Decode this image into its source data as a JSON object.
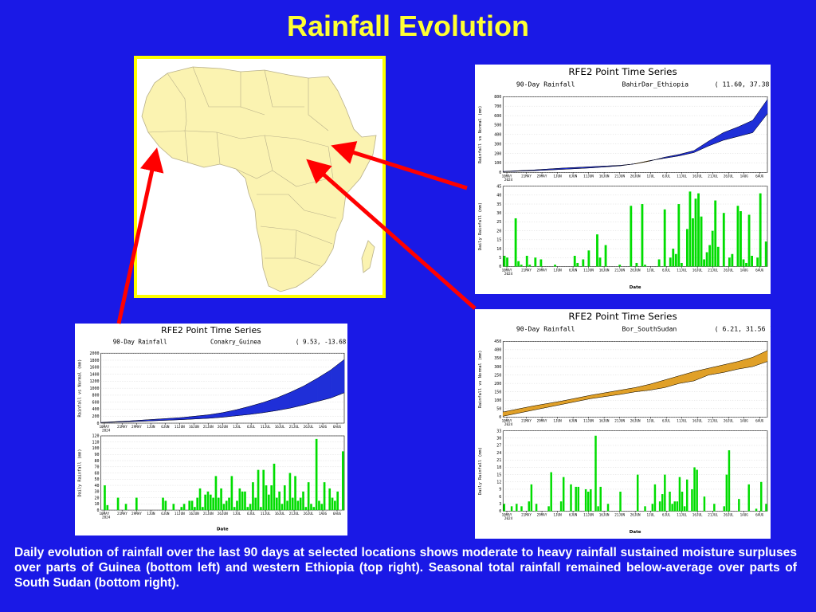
{
  "title": "Rainfall Evolution",
  "caption": "Daily evolution of rainfall over the last 90 days at selected locations shows moderate to heavy rainfall sustained moisture surpluses over parts of Guinea (bottom left) and western Ethiopia (top right). Seasonal total rainfall remained below-average over parts of South Sudan (bottom right).",
  "colors": {
    "background": "#1a19e6",
    "title": "#ffff33",
    "map_border": "#ffff00",
    "map_land": "#fbf3b1",
    "arrow": "#ff0000",
    "surplus": "#1f2fd8",
    "deficit": "#e0a028",
    "daily_bar": "#00dd00"
  },
  "map": {
    "region": "Africa",
    "icon": "africa-map-icon"
  },
  "chart_data": [
    {
      "id": "ethiopia",
      "type": "area",
      "panel_title": "RFE2 Point Time Series",
      "subtitle_left": "90-Day Rainfall",
      "location": "BahirDar_Ethiopia",
      "coords": "( 11.60, 37.38 )",
      "x_ticks": [
        "10MAY",
        "21MAY",
        "29MAY",
        "1JUN",
        "6JUN",
        "11JUN",
        "16JUN",
        "21JUN",
        "26JUN",
        "1JUL",
        "6JUL",
        "11JUL",
        "16JUL",
        "21JUL",
        "26JUL",
        "1AUG",
        "6AUG"
      ],
      "year_label": "2024",
      "xlabel": "Date",
      "top": {
        "ylabel": "Rainfall vs Normal (mm)",
        "ylim": [
          0,
          800
        ],
        "yticks": [
          0,
          100,
          200,
          300,
          400,
          500,
          600,
          700,
          800
        ],
        "days": [
          0,
          10,
          20,
          30,
          40,
          45,
          50,
          55,
          60,
          65,
          70,
          75,
          80,
          85,
          90
        ],
        "actual": [
          10,
          25,
          45,
          60,
          75,
          90,
          120,
          160,
          190,
          230,
          330,
          420,
          480,
          550,
          770
        ],
        "normal": [
          8,
          18,
          32,
          48,
          70,
          92,
          125,
          150,
          175,
          210,
          280,
          340,
          380,
          420,
          620
        ]
      },
      "bottom": {
        "ylabel": "Daily Rainfall (mm)",
        "ylim": [
          0,
          45
        ],
        "yticks": [
          0,
          5,
          10,
          15,
          20,
          25,
          30,
          35,
          40,
          45
        ],
        "values": [
          6,
          5,
          0,
          0,
          27,
          3,
          1,
          0,
          6,
          1,
          0,
          5,
          0,
          4,
          0,
          0,
          0,
          0,
          1,
          0,
          0,
          0,
          0,
          0,
          0,
          6,
          2,
          0,
          4,
          0,
          9,
          0,
          0,
          18,
          5,
          0,
          12,
          0,
          0,
          0,
          0,
          1,
          0,
          0,
          0,
          34,
          0,
          2,
          0,
          35,
          1,
          0,
          0,
          0,
          0,
          4,
          0,
          32,
          0,
          5,
          10,
          7,
          35,
          2,
          0,
          21,
          42,
          27,
          38,
          41,
          28,
          4,
          8,
          12,
          20,
          37,
          11,
          0,
          30,
          0,
          5,
          7,
          0,
          34,
          31,
          4,
          2,
          29,
          6,
          0,
          5,
          41,
          0,
          14
        ]
      }
    },
    {
      "id": "guinea",
      "type": "area",
      "panel_title": "RFE2 Point Time Series",
      "subtitle_left": "90-Day Rainfall",
      "location": "Conakry_Guinea",
      "coords": "( 9.53, -13.68 )",
      "x_ticks": [
        "10MAY",
        "21MAY",
        "29MAY",
        "1JUN",
        "6JUN",
        "11JUN",
        "16JUN",
        "21JUN",
        "26JUN",
        "1JUL",
        "6JUL",
        "11JUL",
        "16JUL",
        "21JUL",
        "26JUL",
        "1AUG",
        "6AUG"
      ],
      "year_label": "2024",
      "xlabel": "Date",
      "top": {
        "ylabel": "Rainfall vs Normal (mm)",
        "ylim": [
          0,
          2000
        ],
        "yticks": [
          0,
          200,
          400,
          600,
          800,
          1000,
          1200,
          1400,
          1600,
          1800,
          2000
        ],
        "days": [
          0,
          10,
          20,
          30,
          40,
          45,
          50,
          55,
          60,
          65,
          70,
          75,
          80,
          85,
          90
        ],
        "actual": [
          20,
          60,
          110,
          160,
          240,
          300,
          380,
          480,
          590,
          720,
          880,
          1060,
          1280,
          1520,
          1820
        ],
        "normal": [
          15,
          40,
          70,
          100,
          140,
          170,
          210,
          250,
          300,
          360,
          430,
          520,
          620,
          720,
          870
        ]
      },
      "bottom": {
        "ylabel": "Daily Rainfall (mm)",
        "ylim": [
          0,
          120
        ],
        "yticks": [
          0,
          10,
          20,
          30,
          40,
          50,
          60,
          70,
          80,
          90,
          100,
          110,
          120
        ],
        "values": [
          0,
          40,
          8,
          0,
          0,
          0,
          20,
          0,
          0,
          10,
          0,
          0,
          0,
          20,
          0,
          0,
          0,
          0,
          0,
          0,
          0,
          0,
          0,
          20,
          15,
          0,
          0,
          10,
          0,
          0,
          5,
          10,
          0,
          15,
          15,
          5,
          20,
          35,
          5,
          25,
          30,
          25,
          20,
          55,
          20,
          35,
          10,
          15,
          20,
          55,
          5,
          15,
          35,
          30,
          30,
          5,
          10,
          45,
          20,
          65,
          5,
          65,
          40,
          25,
          40,
          75,
          20,
          30,
          10,
          40,
          15,
          60,
          20,
          55,
          15,
          20,
          30,
          5,
          45,
          10,
          5,
          115,
          15,
          10,
          45,
          0,
          35,
          20,
          15,
          30,
          0,
          95
        ]
      }
    },
    {
      "id": "southsudan",
      "type": "area",
      "panel_title": "RFE2 Point Time Series",
      "subtitle_left": "90-Day Rainfall",
      "location": "Bor_SouthSudan",
      "coords": "( 6.21, 31.56 )",
      "x_ticks": [
        "10MAY",
        "21MAY",
        "29MAY",
        "1JUN",
        "6JUN",
        "11JUN",
        "16JUN",
        "21JUN",
        "26JUN",
        "1JUL",
        "6JUL",
        "11JUL",
        "16JUL",
        "21JUL",
        "26JUL",
        "1AUG",
        "6AUG"
      ],
      "year_label": "2024",
      "xlabel": "Date",
      "top": {
        "ylabel": "Rainfall vs Normal (mm)",
        "ylim": [
          0,
          450
        ],
        "yticks": [
          0,
          50,
          100,
          150,
          200,
          250,
          300,
          350,
          400,
          450
        ],
        "days": [
          0,
          10,
          20,
          30,
          40,
          45,
          50,
          55,
          60,
          65,
          70,
          75,
          80,
          85,
          90
        ],
        "actual": [
          5,
          40,
          75,
          110,
          135,
          150,
          160,
          175,
          200,
          215,
          250,
          265,
          285,
          300,
          330
        ],
        "normal": [
          30,
          65,
          95,
          130,
          160,
          175,
          195,
          220,
          245,
          270,
          290,
          310,
          330,
          355,
          395
        ]
      },
      "bottom": {
        "ylabel": "Daily Rainfall (mm)",
        "ylim": [
          0,
          33
        ],
        "yticks": [
          0,
          3,
          6,
          9,
          12,
          15,
          18,
          21,
          24,
          27,
          30,
          33
        ],
        "values": [
          3,
          0,
          0,
          2,
          0,
          3,
          0,
          2,
          0,
          0,
          4,
          11,
          0,
          3,
          0,
          0,
          0,
          0,
          2,
          16,
          0,
          0,
          0,
          4,
          14,
          0,
          0,
          11,
          0,
          10,
          10,
          0,
          0,
          9,
          8,
          9,
          0,
          31,
          2,
          10,
          0,
          0,
          3,
          0,
          0,
          0,
          0,
          8,
          0,
          0,
          0,
          0,
          0,
          0,
          15,
          0,
          0,
          2,
          0,
          0,
          3,
          11,
          0,
          4,
          7,
          15,
          0,
          8,
          3,
          4,
          4,
          14,
          8,
          2,
          13,
          0,
          9,
          18,
          17,
          0,
          0,
          6,
          0,
          0,
          0,
          3,
          0,
          0,
          0,
          2,
          15,
          25,
          0,
          0,
          0,
          5,
          0,
          0,
          0,
          11,
          0,
          0,
          1,
          0,
          12,
          0,
          3
        ]
      }
    }
  ]
}
